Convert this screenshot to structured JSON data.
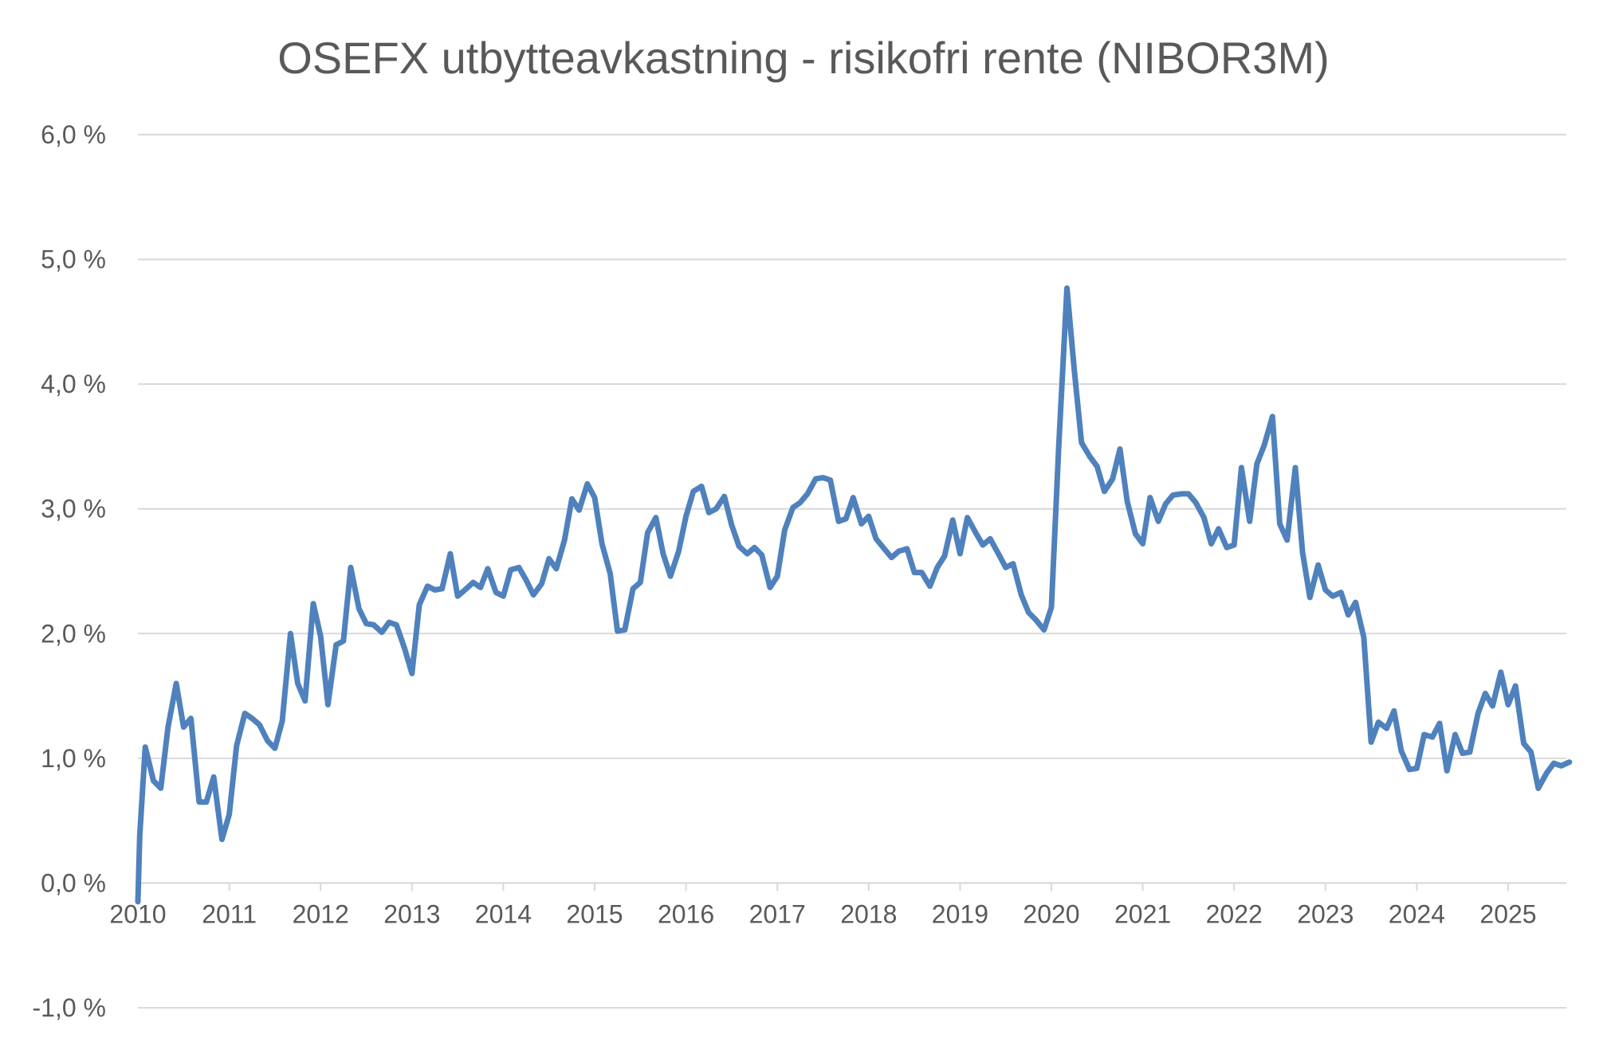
{
  "chart_data": {
    "type": "line",
    "title": "OSEFX utbytteavkastning - risikofri rente (NIBOR3M)",
    "xlabel": "",
    "ylabel": "",
    "y_tick_labels": [
      "-1,0 %",
      "0,0 %",
      "1,0 %",
      "2,0 %",
      "3,0 %",
      "4,0 %",
      "5,0 %",
      "6,0 %"
    ],
    "y_tick_values": [
      -1,
      0,
      1,
      2,
      3,
      4,
      5,
      6
    ],
    "x_tick_labels": [
      "2010",
      "2011",
      "2012",
      "2013",
      "2014",
      "2015",
      "2016",
      "2017",
      "2018",
      "2019",
      "2020",
      "2021",
      "2022",
      "2023",
      "2024",
      "2025"
    ],
    "x_tick_values": [
      2010,
      2011,
      2012,
      2013,
      2014,
      2015,
      2016,
      2017,
      2018,
      2019,
      2020,
      2021,
      2022,
      2023,
      2024,
      2025
    ],
    "ylim": [
      -1,
      6
    ],
    "xlim": [
      2010,
      2025.67
    ],
    "grid": "horizontal",
    "legend": "none",
    "series_color": "#4f81bd",
    "grid_color": "#d9d9d9",
    "series": [
      {
        "x": [
          2010.0,
          2010.02,
          2010.08,
          2010.17,
          2010.25,
          2010.33,
          2010.42,
          2010.5,
          2010.58,
          2010.67,
          2010.75,
          2010.83,
          2010.92,
          2011.0,
          2011.08,
          2011.17,
          2011.25,
          2011.33,
          2011.42,
          2011.5,
          2011.58,
          2011.67,
          2011.75,
          2011.83,
          2011.92,
          2012.0,
          2012.08,
          2012.17,
          2012.25,
          2012.33,
          2012.42,
          2012.5,
          2012.58,
          2012.67,
          2012.75,
          2012.83,
          2012.92,
          2013.0,
          2013.08,
          2013.17,
          2013.25,
          2013.33,
          2013.42,
          2013.5,
          2013.58,
          2013.67,
          2013.75,
          2013.83,
          2013.92,
          2014.0,
          2014.08,
          2014.17,
          2014.25,
          2014.33,
          2014.42,
          2014.5,
          2014.58,
          2014.67,
          2014.75,
          2014.83,
          2014.92,
          2015.0,
          2015.08,
          2015.17,
          2015.25,
          2015.33,
          2015.42,
          2015.5,
          2015.58,
          2015.67,
          2015.75,
          2015.83,
          2015.92,
          2016.0,
          2016.08,
          2016.17,
          2016.25,
          2016.33,
          2016.42,
          2016.5,
          2016.58,
          2016.67,
          2016.75,
          2016.83,
          2016.92,
          2017.0,
          2017.08,
          2017.17,
          2017.25,
          2017.33,
          2017.42,
          2017.5,
          2017.58,
          2017.67,
          2017.75,
          2017.83,
          2017.92,
          2018.0,
          2018.08,
          2018.17,
          2018.25,
          2018.33,
          2018.42,
          2018.5,
          2018.58,
          2018.67,
          2018.75,
          2018.83,
          2018.92,
          2019.0,
          2019.08,
          2019.17,
          2019.25,
          2019.33,
          2019.42,
          2019.5,
          2019.58,
          2019.67,
          2019.75,
          2019.83,
          2019.92,
          2020.0,
          2020.08,
          2020.17,
          2020.25,
          2020.33,
          2020.42,
          2020.5,
          2020.58,
          2020.67,
          2020.75,
          2020.83,
          2020.92,
          2021.0,
          2021.08,
          2021.17,
          2021.25,
          2021.33,
          2021.42,
          2021.5,
          2021.58,
          2021.67,
          2021.75,
          2021.83,
          2021.92,
          2022.0,
          2022.08,
          2022.17,
          2022.25,
          2022.33,
          2022.42,
          2022.5,
          2022.58,
          2022.67,
          2022.75,
          2022.83,
          2022.92,
          2023.0,
          2023.08,
          2023.17,
          2023.25,
          2023.33,
          2023.42,
          2023.5,
          2023.58,
          2023.67,
          2023.75,
          2023.83,
          2023.92,
          2024.0,
          2024.08,
          2024.17,
          2024.25,
          2024.33,
          2024.42,
          2024.5,
          2024.58,
          2024.67,
          2024.75,
          2024.83,
          2024.92,
          2025.0,
          2025.08,
          2025.17,
          2025.25,
          2025.33,
          2025.42,
          2025.5,
          2025.58,
          2025.67
        ],
        "values": [
          -0.15,
          0.38,
          1.09,
          0.82,
          0.76,
          1.25,
          1.6,
          1.25,
          1.32,
          0.65,
          0.65,
          0.85,
          0.35,
          0.55,
          1.1,
          1.36,
          1.32,
          1.27,
          1.14,
          1.08,
          1.3,
          2.0,
          1.6,
          1.46,
          2.24,
          1.98,
          1.43,
          1.91,
          1.94,
          2.53,
          2.2,
          2.08,
          2.07,
          2.01,
          2.09,
          2.07,
          1.88,
          1.68,
          2.23,
          2.38,
          2.35,
          2.36,
          2.64,
          2.3,
          2.35,
          2.41,
          2.37,
          2.52,
          2.33,
          2.3,
          2.51,
          2.53,
          2.43,
          2.31,
          2.4,
          2.6,
          2.52,
          2.75,
          3.08,
          2.99,
          3.2,
          3.09,
          2.72,
          2.48,
          2.02,
          2.03,
          2.36,
          2.41,
          2.81,
          2.93,
          2.64,
          2.46,
          2.66,
          2.94,
          3.14,
          3.18,
          2.97,
          3.0,
          3.1,
          2.87,
          2.7,
          2.64,
          2.69,
          2.63,
          2.37,
          2.46,
          2.83,
          3.01,
          3.05,
          3.12,
          3.24,
          3.25,
          3.23,
          2.9,
          2.92,
          3.09,
          2.88,
          2.94,
          2.76,
          2.68,
          2.61,
          2.66,
          2.68,
          2.49,
          2.49,
          2.38,
          2.53,
          2.62,
          2.91,
          2.64,
          2.93,
          2.81,
          2.71,
          2.76,
          2.64,
          2.53,
          2.56,
          2.31,
          2.17,
          2.11,
          2.03,
          2.21,
          3.5,
          4.77,
          4.12,
          3.53,
          3.42,
          3.34,
          3.14,
          3.24,
          3.48,
          3.06,
          2.8,
          2.72,
          3.09,
          2.9,
          3.04,
          3.11,
          3.12,
          3.12,
          3.05,
          2.93,
          2.72,
          2.84,
          2.69,
          2.71,
          3.33,
          2.9,
          3.36,
          3.51,
          3.74,
          2.88,
          2.75,
          3.33,
          2.65,
          2.29,
          2.55,
          2.35,
          2.3,
          2.33,
          2.15,
          2.25,
          1.97,
          1.13,
          1.29,
          1.24,
          1.38,
          1.06,
          0.91,
          0.92,
          1.19,
          1.17,
          1.28,
          0.9,
          1.19,
          1.04,
          1.05,
          1.36,
          1.52,
          1.42,
          1.69,
          1.43,
          1.58,
          1.12,
          1.05,
          0.76,
          0.88,
          0.96,
          0.94,
          0.97
        ]
      }
    ]
  }
}
